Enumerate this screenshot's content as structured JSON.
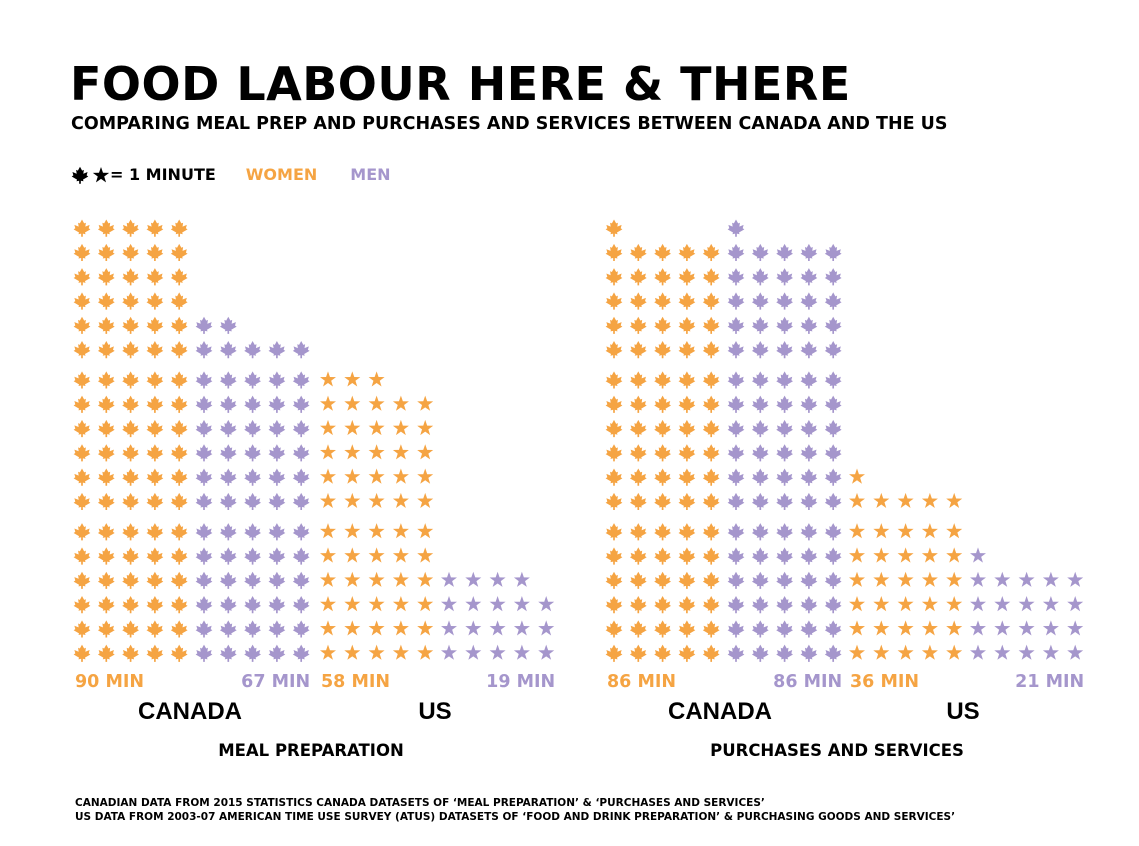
{
  "title": "FOOD LABOUR HERE & THERE",
  "subtitle": "COMPARING MEAL PREP AND PURCHASES AND SERVICES BETWEEN CANADA AND THE US",
  "legend": {
    "unit_label": "= 1 MINUTE",
    "women_label": "WOMEN",
    "men_label": "MEN"
  },
  "colors": {
    "women": "#f5a443",
    "men": "#a596cc",
    "text": "#000000"
  },
  "icons": {
    "canada": "maple-leaf-icon",
    "us": "star-icon"
  },
  "footnotes": [
    "CANADIAN DATA FROM 2015 STATISTICS CANADA DATASETS OF ‘MEAL PREPARATION’ & ‘PURCHASES AND SERVICES’",
    "US DATA FROM 2003-07 AMERICAN TIME USE SURVEY (ATUS) DATASETS OF ‘FOOD AND DRINK PREPARATION’ & PURCHASING GOODS AND SERVICES’"
  ],
  "chart_data": [
    {
      "type": "bar",
      "title": "MEAL PREPARATION",
      "categories": [
        "CANADA",
        "US"
      ],
      "series": [
        {
          "name": "WOMEN",
          "values": [
            90,
            58
          ],
          "value_labels": [
            "90 MIN",
            "58 MIN"
          ]
        },
        {
          "name": "MEN",
          "values": [
            67,
            19
          ],
          "value_labels": [
            "67 MIN",
            "19 MIN"
          ]
        }
      ]
    },
    {
      "type": "bar",
      "title": "PURCHASES AND SERVICES",
      "categories": [
        "CANADA",
        "US"
      ],
      "series": [
        {
          "name": "WOMEN",
          "values": [
            86,
            36
          ],
          "value_labels": [
            "86 MIN",
            "36 MIN"
          ]
        },
        {
          "name": "MEN",
          "values": [
            86,
            21
          ],
          "value_labels": [
            "86 MIN",
            "21 MIN"
          ]
        }
      ]
    }
  ]
}
